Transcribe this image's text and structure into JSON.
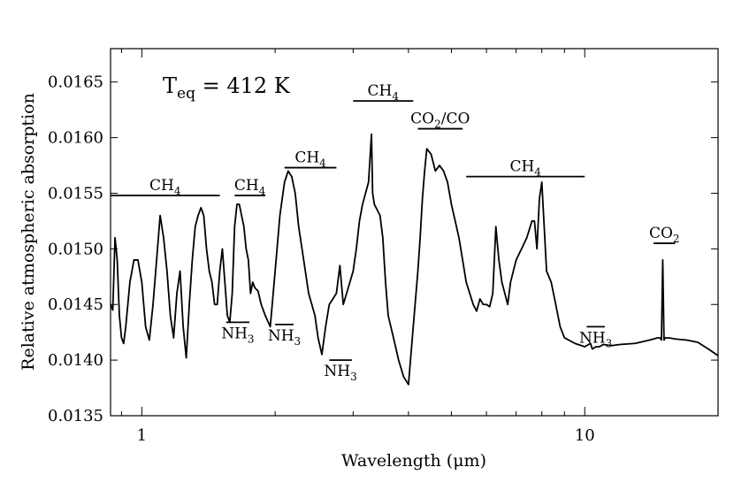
{
  "chart_data": {
    "type": "line",
    "title": "",
    "xlabel": "Wavelength (μm)",
    "ylabel": "Relative atmospheric absorption",
    "xscale": "log",
    "xlim": [
      0.85,
      20
    ],
    "ylim": [
      0.0135,
      0.0168
    ],
    "x_ticks": [
      1,
      10
    ],
    "x_tick_labels": [
      "1",
      "10"
    ],
    "y_ticks": [
      0.0135,
      0.014,
      0.0145,
      0.015,
      0.0155,
      0.016,
      0.0165
    ],
    "y_tick_labels": [
      "0.0135",
      "0.0140",
      "0.0145",
      "0.0150",
      "0.0155",
      "0.0160",
      "0.0165"
    ],
    "annotation": {
      "T": "T",
      "sub": "eq",
      "rest": " = 412 K"
    },
    "bands": [
      {
        "main": "CH",
        "sub": "4",
        "x1": 0.85,
        "x2": 1.5,
        "y": 0.01548
      },
      {
        "main": "CH",
        "sub": "4",
        "x1": 1.62,
        "x2": 1.9,
        "y": 0.01548
      },
      {
        "main": "CH",
        "sub": "4",
        "x1": 2.1,
        "x2": 2.75,
        "y": 0.01573
      },
      {
        "main": "CH",
        "sub": "4",
        "x1": 3.0,
        "x2": 4.1,
        "y": 0.01633
      },
      {
        "main": "CO",
        "sub": "2",
        "rest": "/CO",
        "x1": 4.2,
        "x2": 5.3,
        "y": 0.01608
      },
      {
        "main": "CH",
        "sub": "4",
        "x1": 5.4,
        "x2": 10.0,
        "y": 0.01565
      },
      {
        "main": "CO",
        "sub": "2",
        "x1": 14.3,
        "x2": 16.0,
        "y": 0.01505
      }
    ],
    "nh3_marks": [
      {
        "main": "NH",
        "sub": "3",
        "x1": 1.55,
        "x2": 1.75,
        "y": 0.01434
      },
      {
        "main": "NH",
        "sub": "3",
        "x1": 2.0,
        "x2": 2.2,
        "y": 0.01432
      },
      {
        "main": "NH",
        "sub": "3",
        "x1": 2.65,
        "x2": 2.98,
        "y": 0.014
      },
      {
        "main": "NH",
        "sub": "3",
        "x1": 10.1,
        "x2": 11.1,
        "y": 0.0143
      }
    ],
    "series": [
      {
        "name": "spectrum",
        "x": [
          0.85,
          0.86,
          0.87,
          0.88,
          0.89,
          0.9,
          0.91,
          0.92,
          0.94,
          0.96,
          0.98,
          1.0,
          1.02,
          1.04,
          1.06,
          1.08,
          1.1,
          1.12,
          1.14,
          1.16,
          1.18,
          1.2,
          1.22,
          1.24,
          1.26,
          1.28,
          1.3,
          1.32,
          1.34,
          1.36,
          1.38,
          1.4,
          1.42,
          1.44,
          1.46,
          1.48,
          1.5,
          1.52,
          1.54,
          1.56,
          1.58,
          1.6,
          1.62,
          1.64,
          1.66,
          1.68,
          1.7,
          1.72,
          1.74,
          1.76,
          1.78,
          1.8,
          1.83,
          1.86,
          1.9,
          1.95,
          2.0,
          2.05,
          2.1,
          2.14,
          2.18,
          2.22,
          2.26,
          2.3,
          2.34,
          2.38,
          2.42,
          2.46,
          2.5,
          2.55,
          2.6,
          2.65,
          2.7,
          2.75,
          2.8,
          2.85,
          2.9,
          2.95,
          3.0,
          3.05,
          3.1,
          3.15,
          3.2,
          3.25,
          3.3,
          3.32,
          3.35,
          3.4,
          3.45,
          3.5,
          3.55,
          3.6,
          3.7,
          3.8,
          3.9,
          4.0,
          4.1,
          4.2,
          4.25,
          4.3,
          4.35,
          4.4,
          4.5,
          4.6,
          4.7,
          4.8,
          4.9,
          5.0,
          5.1,
          5.2,
          5.3,
          5.4,
          5.5,
          5.6,
          5.7,
          5.8,
          5.9,
          6.0,
          6.1,
          6.2,
          6.3,
          6.4,
          6.5,
          6.6,
          6.7,
          6.8,
          7.0,
          7.2,
          7.4,
          7.6,
          7.7,
          7.8,
          7.9,
          8.0,
          8.2,
          8.4,
          8.6,
          8.8,
          9.0,
          9.5,
          10.0,
          10.3,
          10.4,
          10.6,
          10.8,
          11.0,
          11.5,
          12.0,
          13.0,
          14.0,
          14.6,
          14.8,
          14.9,
          15.0,
          15.1,
          15.2,
          15.5,
          16.0,
          17.0,
          18.0,
          19.0,
          20.0
        ],
        "values": [
          0.0145,
          0.01445,
          0.0151,
          0.0149,
          0.0144,
          0.0142,
          0.01415,
          0.0143,
          0.0147,
          0.0149,
          0.0149,
          0.0147,
          0.0143,
          0.01418,
          0.0145,
          0.0149,
          0.0153,
          0.0151,
          0.0148,
          0.0144,
          0.0142,
          0.0146,
          0.0148,
          0.0143,
          0.01402,
          0.0145,
          0.0149,
          0.0152,
          0.0153,
          0.01537,
          0.0153,
          0.015,
          0.0148,
          0.0147,
          0.0145,
          0.0145,
          0.0148,
          0.015,
          0.0147,
          0.0144,
          0.01434,
          0.0146,
          0.0152,
          0.0154,
          0.0154,
          0.0153,
          0.0152,
          0.015,
          0.0149,
          0.0146,
          0.0147,
          0.01465,
          0.01462,
          0.0145,
          0.0144,
          0.0143,
          0.0148,
          0.0153,
          0.0156,
          0.0157,
          0.01565,
          0.0155,
          0.0152,
          0.015,
          0.0148,
          0.0146,
          0.0145,
          0.0144,
          0.0142,
          0.01405,
          0.0143,
          0.0145,
          0.01455,
          0.0146,
          0.01485,
          0.0145,
          0.0146,
          0.0147,
          0.0148,
          0.015,
          0.01525,
          0.0154,
          0.0155,
          0.0156,
          0.01603,
          0.0155,
          0.0154,
          0.01535,
          0.0153,
          0.0151,
          0.0147,
          0.0144,
          0.0142,
          0.014,
          0.01385,
          0.01378,
          0.0143,
          0.0148,
          0.0151,
          0.01545,
          0.0157,
          0.0159,
          0.01585,
          0.0157,
          0.01575,
          0.0157,
          0.0156,
          0.0154,
          0.01525,
          0.0151,
          0.0149,
          0.0147,
          0.0146,
          0.0145,
          0.01444,
          0.01455,
          0.0145,
          0.0145,
          0.01448,
          0.0146,
          0.0152,
          0.0149,
          0.0147,
          0.0146,
          0.0145,
          0.0147,
          0.0149,
          0.015,
          0.0151,
          0.01525,
          0.01525,
          0.015,
          0.01545,
          0.0156,
          0.0148,
          0.0147,
          0.0145,
          0.0143,
          0.0142,
          0.01415,
          0.01412,
          0.01415,
          0.0141,
          0.01412,
          0.01412,
          0.01414,
          0.01413,
          0.01414,
          0.01415,
          0.01418,
          0.0142,
          0.0142,
          0.01418,
          0.0149,
          0.01418,
          0.0142,
          0.0142,
          0.01419,
          0.01418,
          0.01416,
          0.0141,
          0.01404
        ]
      }
    ]
  },
  "colors": {
    "line": "#000000",
    "background": "#ffffff"
  }
}
